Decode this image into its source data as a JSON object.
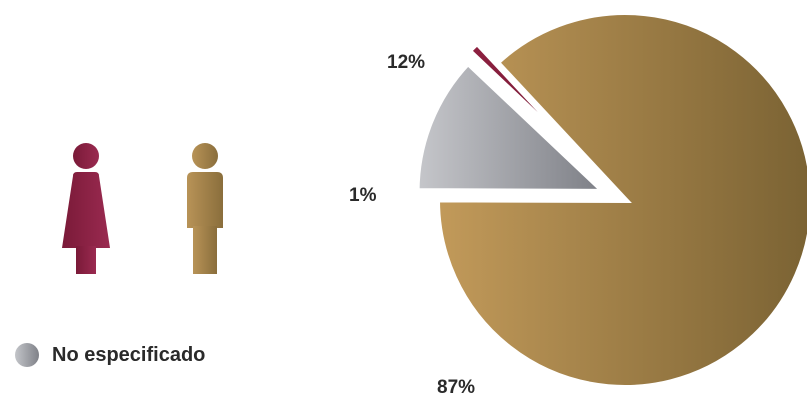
{
  "chart_data": {
    "type": "pie",
    "title": "",
    "slices": [
      {
        "label": "87%",
        "value": 87,
        "color_start": "#c29a5a",
        "color_end": "#7a6233"
      },
      {
        "label": "12%",
        "value": 12,
        "color_start": "#c6c7cb",
        "color_end": "#7c7e85"
      },
      {
        "label": "1%",
        "value": 1,
        "color_start": "#8e2040",
        "color_end": "#6e1a33"
      }
    ],
    "legend": [
      {
        "label": "No especificado",
        "color": "#9a9ca2"
      }
    ],
    "legend_placement": "bottom-left"
  },
  "icons": {
    "female": {
      "name": "female-person-icon",
      "color": "#8b2145"
    },
    "male": {
      "name": "male-person-icon",
      "color": "#a4844c"
    }
  }
}
